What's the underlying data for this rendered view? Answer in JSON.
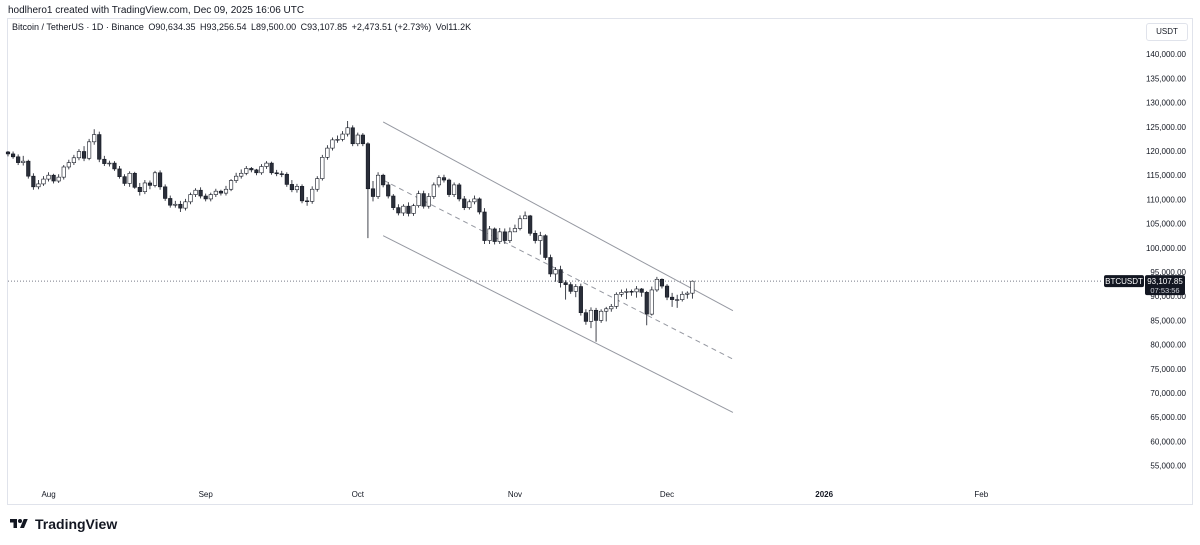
{
  "header": {
    "text": "hodlhero1 created with TradingView.com, Dec 09, 2025 16:06 UTC"
  },
  "legend": {
    "symbol": "Bitcoin / TetherUS · 1D · Binance",
    "open": "O90,634.35",
    "high": "H93,256.54",
    "low": "L89,500.00",
    "close": "C93,107.85",
    "change": "+2,473.51 (+2.73%)",
    "volume": "Vol11.2K"
  },
  "price_axis": {
    "currency": "USDT"
  },
  "price_tag": {
    "symbol": "BTCUSDT",
    "price": "93,107.85",
    "countdown": "07:53:56"
  },
  "brand": {
    "name": "TradingView"
  },
  "colors": {
    "up": "#ffffff",
    "down": "#2a2e39",
    "wick": "#131722",
    "channel": "#9598a1",
    "current_line": "#787b86",
    "label_bg": "#131722"
  },
  "chart_data": {
    "type": "candlestick",
    "x_axis_labels": [
      "Aug",
      "Sep",
      "Oct",
      "Nov",
      "Dec",
      "2026",
      "Feb"
    ],
    "y_ticks": [
      55000,
      60000,
      65000,
      70000,
      75000,
      80000,
      85000,
      90000,
      95000,
      100000,
      105000,
      110000,
      115000,
      120000,
      125000,
      130000,
      135000,
      140000
    ],
    "y_tick_labels": [
      "55,000.00",
      "60,000.00",
      "65,000.00",
      "70,000.00",
      "75,000.00",
      "80,000.00",
      "85,000.00",
      "90,000.00",
      "95,000.00",
      "100,000.00",
      "105,000.00",
      "110,000.00",
      "115,000.00",
      "120,000.00",
      "125,000.00",
      "130,000.00",
      "135,000.00",
      "140,000.00"
    ],
    "ylim": [
      51000,
      145000
    ],
    "current_price": 93107.85,
    "date_range": [
      "2025-07-24",
      "2026-02-25"
    ],
    "closes": [
      119400,
      118800,
      117600,
      117900,
      114800,
      112600,
      113200,
      114200,
      115000,
      113800,
      114600,
      116700,
      117600,
      118600,
      119900,
      118500,
      121900,
      123400,
      118300,
      117400,
      117500,
      116300,
      114700,
      113300,
      115400,
      112500,
      111600,
      113400,
      112900,
      115500,
      112600,
      110200,
      108800,
      109000,
      108200,
      109500,
      111000,
      111900,
      110700,
      110100,
      111000,
      111700,
      111300,
      112100,
      113900,
      114800,
      115400,
      116400,
      116100,
      115500,
      116800,
      117500,
      115500,
      115300,
      115200,
      113100,
      112000,
      112700,
      109700,
      109600,
      112100,
      114300,
      118700,
      120600,
      122300,
      122400,
      123500,
      124800,
      121500,
      123300,
      121500,
      112200,
      110600,
      115000,
      113000,
      110700,
      108300,
      107200,
      108600,
      107100,
      108700,
      111200,
      108600,
      110600,
      113000,
      114500,
      114000,
      111000,
      113000,
      110100,
      108300,
      109500,
      110100,
      107400,
      101500,
      103900,
      101300,
      103300,
      101500,
      103300,
      104000,
      106000,
      106600,
      103000,
      101500,
      102500,
      98000,
      94600,
      95500,
      92800,
      92400,
      91000,
      92000,
      86600,
      84800,
      87100,
      85000,
      86900,
      87400,
      87900,
      90400,
      90800,
      91000,
      90900,
      91500,
      90800,
      86300,
      91300,
      93500,
      92100,
      89800,
      89300,
      89300,
      90400,
      90634,
      93107
    ],
    "opens": [
      119800,
      119400,
      118800,
      117600,
      117900,
      114800,
      112600,
      113200,
      114200,
      115000,
      113800,
      114600,
      116700,
      117600,
      118600,
      119900,
      118500,
      121900,
      123400,
      118300,
      117400,
      117500,
      116300,
      114700,
      113300,
      115400,
      112500,
      111600,
      113400,
      112900,
      115500,
      112600,
      110200,
      108800,
      109000,
      108200,
      109500,
      111000,
      111900,
      110700,
      110100,
      111000,
      111700,
      111300,
      112100,
      113900,
      114800,
      115400,
      116400,
      116100,
      115500,
      116800,
      117500,
      115500,
      115300,
      115200,
      113100,
      112000,
      112700,
      109700,
      109600,
      112100,
      114300,
      118700,
      120600,
      122300,
      122400,
      123500,
      124800,
      121500,
      123300,
      121500,
      112200,
      110600,
      115000,
      113000,
      110700,
      108300,
      107200,
      108600,
      107100,
      108700,
      111200,
      108600,
      110600,
      113000,
      114500,
      114000,
      111000,
      113000,
      110100,
      108300,
      109500,
      110100,
      107400,
      101500,
      103900,
      101300,
      103300,
      101500,
      103300,
      104000,
      106000,
      106600,
      103000,
      101500,
      102500,
      98000,
      94600,
      95500,
      92800,
      92400,
      91000,
      92000,
      86600,
      84800,
      87100,
      85000,
      86900,
      87400,
      87900,
      90400,
      90800,
      91000,
      90900,
      91500,
      90800,
      86300,
      91300,
      93500,
      92100,
      89800,
      89300,
      89300,
      90400,
      90634
    ],
    "highs": [
      120000,
      119900,
      119300,
      119000,
      118200,
      115400,
      114000,
      114800,
      115600,
      115300,
      115200,
      117100,
      118200,
      119200,
      120400,
      121000,
      122500,
      124500,
      124000,
      119000,
      118000,
      117900,
      116900,
      115200,
      115800,
      115700,
      113400,
      114000,
      113900,
      115900,
      116000,
      113100,
      110800,
      109700,
      109700,
      110100,
      111400,
      112300,
      112500,
      111200,
      111400,
      112200,
      112000,
      112800,
      114200,
      115500,
      116200,
      116900,
      116700,
      116300,
      117300,
      117900,
      117800,
      116100,
      115900,
      115600,
      114000,
      113200,
      113100,
      110500,
      112700,
      114800,
      119200,
      121200,
      122800,
      123200,
      124100,
      126200,
      125300,
      123800,
      123700,
      121800,
      113800,
      115600,
      115300,
      113600,
      111100,
      109000,
      109000,
      109400,
      109100,
      111800,
      111800,
      111300,
      113500,
      115000,
      115100,
      114300,
      113500,
      113400,
      110700,
      110000,
      110800,
      110400,
      108200,
      104500,
      104200,
      104100,
      104000,
      104200,
      104800,
      106700,
      107500,
      106800,
      103600,
      103300,
      102800,
      98600,
      96000,
      96300,
      93300,
      92900,
      92500,
      92600,
      87300,
      87700,
      87600,
      87300,
      87800,
      88400,
      90800,
      91400,
      91600,
      91400,
      92100,
      91700,
      91100,
      92000,
      94000,
      93700,
      92500,
      90700,
      90300,
      91000,
      91000,
      93256
    ],
    "lows": [
      118900,
      118400,
      117100,
      117000,
      114300,
      112000,
      112100,
      112800,
      113700,
      113300,
      113400,
      114100,
      116200,
      117100,
      118100,
      117900,
      118100,
      121300,
      117700,
      116900,
      116800,
      115900,
      114300,
      112800,
      112600,
      112200,
      110800,
      111100,
      112100,
      112500,
      112000,
      109700,
      108300,
      108300,
      107400,
      107700,
      109000,
      110500,
      110200,
      109600,
      109600,
      110500,
      110800,
      110800,
      111700,
      113400,
      114300,
      115000,
      115600,
      115000,
      115100,
      116300,
      115100,
      114800,
      114600,
      112600,
      111500,
      111400,
      109200,
      108700,
      109100,
      111600,
      113900,
      118200,
      120100,
      121700,
      122000,
      123000,
      121000,
      121000,
      121000,
      102000,
      109600,
      110100,
      112500,
      110200,
      107800,
      106700,
      106600,
      106500,
      106600,
      108300,
      108100,
      108100,
      110100,
      112500,
      113500,
      110500,
      110500,
      109600,
      107800,
      107900,
      109000,
      106900,
      100800,
      100800,
      100700,
      100800,
      100800,
      101000,
      103500,
      103600,
      106000,
      102500,
      100900,
      98600,
      97500,
      94000,
      93000,
      91800,
      89300,
      90500,
      89800,
      86000,
      84100,
      83400,
      80600,
      84500,
      84800,
      86800,
      87400,
      89900,
      89400,
      90100,
      89700,
      89900,
      84000,
      86000,
      90900,
      91600,
      89200,
      87800,
      87600,
      88900,
      89500,
      89500
    ],
    "channel": {
      "upper": [
        [
          "2025-10-06",
          126000
        ],
        [
          "2025-12-14",
          87000
        ]
      ],
      "mid": [
        [
          "2025-10-06",
          114000
        ],
        [
          "2025-12-14",
          77000
        ]
      ],
      "lower": [
        [
          "2025-10-06",
          102500
        ],
        [
          "2025-12-14",
          66000
        ]
      ]
    }
  }
}
